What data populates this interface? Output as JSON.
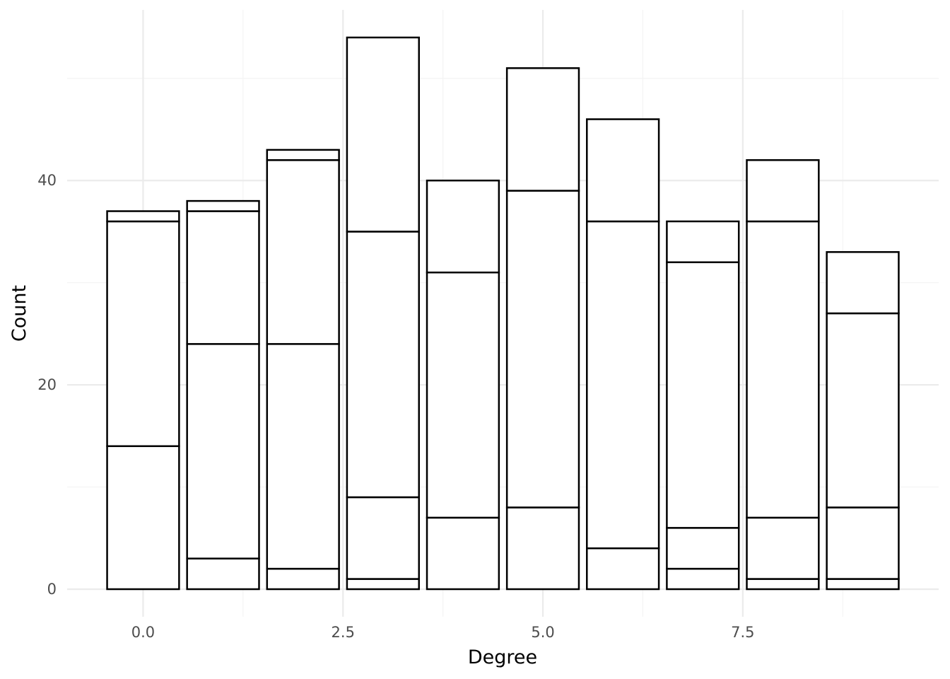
{
  "chart_data": {
    "type": "bar",
    "stacked": true,
    "fill": "#ffffff",
    "outline": "#000000",
    "xlabel": "Degree",
    "ylabel": "Count",
    "xlim": [
      -0.95,
      9.95
    ],
    "ylim": [
      -2.7,
      56.7
    ],
    "x_ticks": [
      0,
      2.5,
      5,
      7.5
    ],
    "x_tick_labels": [
      "0.0",
      "2.5",
      "5.0",
      "7.5"
    ],
    "x_minor_ticks": [
      1.25,
      3.75,
      6.25,
      8.75
    ],
    "y_ticks": [
      0,
      20,
      40
    ],
    "y_tick_labels": [
      "0",
      "20",
      "40"
    ],
    "y_minor_ticks": [
      10,
      30,
      50
    ],
    "grid": true,
    "bar_width": 0.9,
    "bars": [
      {
        "x": 0,
        "boundaries": [
          0,
          14,
          36,
          37
        ]
      },
      {
        "x": 1,
        "boundaries": [
          0,
          3,
          24,
          37,
          38
        ]
      },
      {
        "x": 2,
        "boundaries": [
          0,
          2,
          24,
          42,
          43
        ]
      },
      {
        "x": 3,
        "boundaries": [
          0,
          1,
          9,
          35,
          54
        ]
      },
      {
        "x": 4,
        "boundaries": [
          0,
          7,
          31,
          40
        ]
      },
      {
        "x": 5,
        "boundaries": [
          0,
          8,
          39,
          51
        ]
      },
      {
        "x": 6,
        "boundaries": [
          0,
          4,
          36,
          46
        ]
      },
      {
        "x": 7,
        "boundaries": [
          0,
          2,
          6,
          32,
          36
        ]
      },
      {
        "x": 8,
        "boundaries": [
          0,
          1,
          7,
          36,
          42
        ]
      },
      {
        "x": 9,
        "boundaries": [
          0,
          1,
          8,
          27,
          33
        ]
      }
    ]
  }
}
